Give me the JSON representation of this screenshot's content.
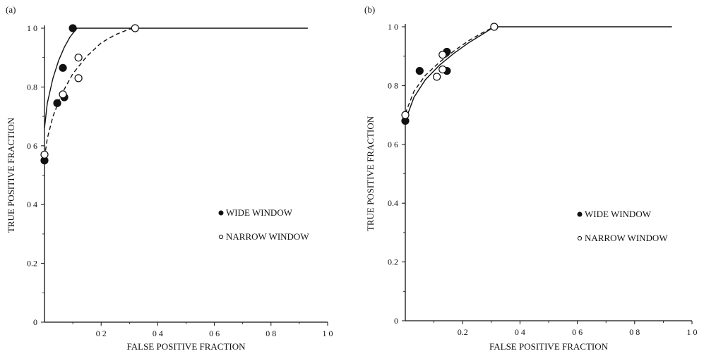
{
  "chart_data": [
    {
      "type": "line",
      "panel_label": "(a)",
      "xlabel": "FALSE POSITIVE FRACTION",
      "ylabel": "TRUE POSITIVE FRACTION",
      "xlim": [
        0,
        1.0
      ],
      "ylim": [
        0,
        1.0
      ],
      "x_ticks": [
        0.2,
        0.4,
        0.6,
        0.8,
        1.0
      ],
      "x_tick_labels": [
        "0 2",
        "0 4",
        "0 6",
        "0 8",
        "1 0"
      ],
      "y_ticks": [
        0,
        0.2,
        0.4,
        0.6,
        0.8,
        1.0
      ],
      "y_tick_labels": [
        "0",
        "0.2",
        "0 4",
        "0 6",
        "0.8",
        "1 0"
      ],
      "grid": false,
      "legend_position": "right",
      "series": [
        {
          "name": "WIDE WINDOW",
          "marker": "filled-circle",
          "line_style": "solid",
          "points": [
            [
              0.0,
              0.55
            ],
            [
              0.045,
              0.745
            ],
            [
              0.065,
              0.865
            ],
            [
              0.07,
              0.765
            ],
            [
              0.1,
              1.0
            ]
          ],
          "curve": [
            [
              0.0,
              0.66
            ],
            [
              0.01,
              0.745
            ],
            [
              0.03,
              0.83
            ],
            [
              0.05,
              0.89
            ],
            [
              0.07,
              0.935
            ],
            [
              0.09,
              0.97
            ],
            [
              0.115,
              1.0
            ],
            [
              0.3,
              1.0
            ],
            [
              0.5,
              1.0
            ],
            [
              0.7,
              1.0
            ],
            [
              0.93,
              1.0
            ]
          ]
        },
        {
          "name": "NARROW WINDOW",
          "marker": "open-circle",
          "line_style": "dashed",
          "points": [
            [
              0.0,
              0.57
            ],
            [
              0.065,
              0.775
            ],
            [
              0.12,
              0.83
            ],
            [
              0.12,
              0.9
            ],
            [
              0.32,
              1.0
            ]
          ],
          "curve": [
            [
              0.0,
              0.56
            ],
            [
              0.01,
              0.625
            ],
            [
              0.03,
              0.7
            ],
            [
              0.06,
              0.775
            ],
            [
              0.1,
              0.845
            ],
            [
              0.15,
              0.905
            ],
            [
              0.2,
              0.95
            ],
            [
              0.25,
              0.978
            ],
            [
              0.3,
              0.997
            ],
            [
              0.32,
              1.0
            ]
          ]
        }
      ]
    },
    {
      "type": "line",
      "panel_label": "(b)",
      "xlabel": "FALSE POSITIVE FRACTION",
      "ylabel": "TRUE POSITIVE FRACTION",
      "xlim": [
        0,
        1.0
      ],
      "ylim": [
        0,
        1.0
      ],
      "x_ticks": [
        0.2,
        0.4,
        0.6,
        0.8,
        1.0
      ],
      "x_tick_labels": [
        "0.2",
        "0 4",
        "0 6",
        "0 8",
        "1 0"
      ],
      "y_ticks": [
        0,
        0.2,
        0.4,
        0.6,
        0.8,
        1.0
      ],
      "y_tick_labels": [
        "0",
        "0.2",
        "0.4",
        "0 6",
        "0 8",
        "1 0"
      ],
      "grid": false,
      "legend_position": "right",
      "series": [
        {
          "name": "WIDE WINDOW",
          "marker": "filled-circle",
          "line_style": "solid",
          "points": [
            [
              0.0,
              0.68
            ],
            [
              0.05,
              0.85
            ],
            [
              0.145,
              0.915
            ],
            [
              0.145,
              0.85
            ]
          ],
          "curve": [
            [
              0.0,
              0.68
            ],
            [
              0.03,
              0.76
            ],
            [
              0.07,
              0.82
            ],
            [
              0.12,
              0.87
            ],
            [
              0.17,
              0.91
            ],
            [
              0.22,
              0.945
            ],
            [
              0.27,
              0.975
            ],
            [
              0.31,
              1.0
            ],
            [
              0.5,
              1.0
            ],
            [
              0.7,
              1.0
            ],
            [
              0.93,
              1.0
            ]
          ]
        },
        {
          "name": "NARROW WINDOW",
          "marker": "open-circle",
          "line_style": "dashed",
          "points": [
            [
              0.0,
              0.7
            ],
            [
              0.11,
              0.83
            ],
            [
              0.13,
              0.855
            ],
            [
              0.13,
              0.905
            ],
            [
              0.31,
              1.0
            ]
          ],
          "curve": [
            [
              0.0,
              0.705
            ],
            [
              0.03,
              0.78
            ],
            [
              0.07,
              0.835
            ],
            [
              0.12,
              0.88
            ],
            [
              0.17,
              0.918
            ],
            [
              0.22,
              0.952
            ],
            [
              0.27,
              0.98
            ],
            [
              0.31,
              1.0
            ]
          ]
        }
      ]
    }
  ]
}
